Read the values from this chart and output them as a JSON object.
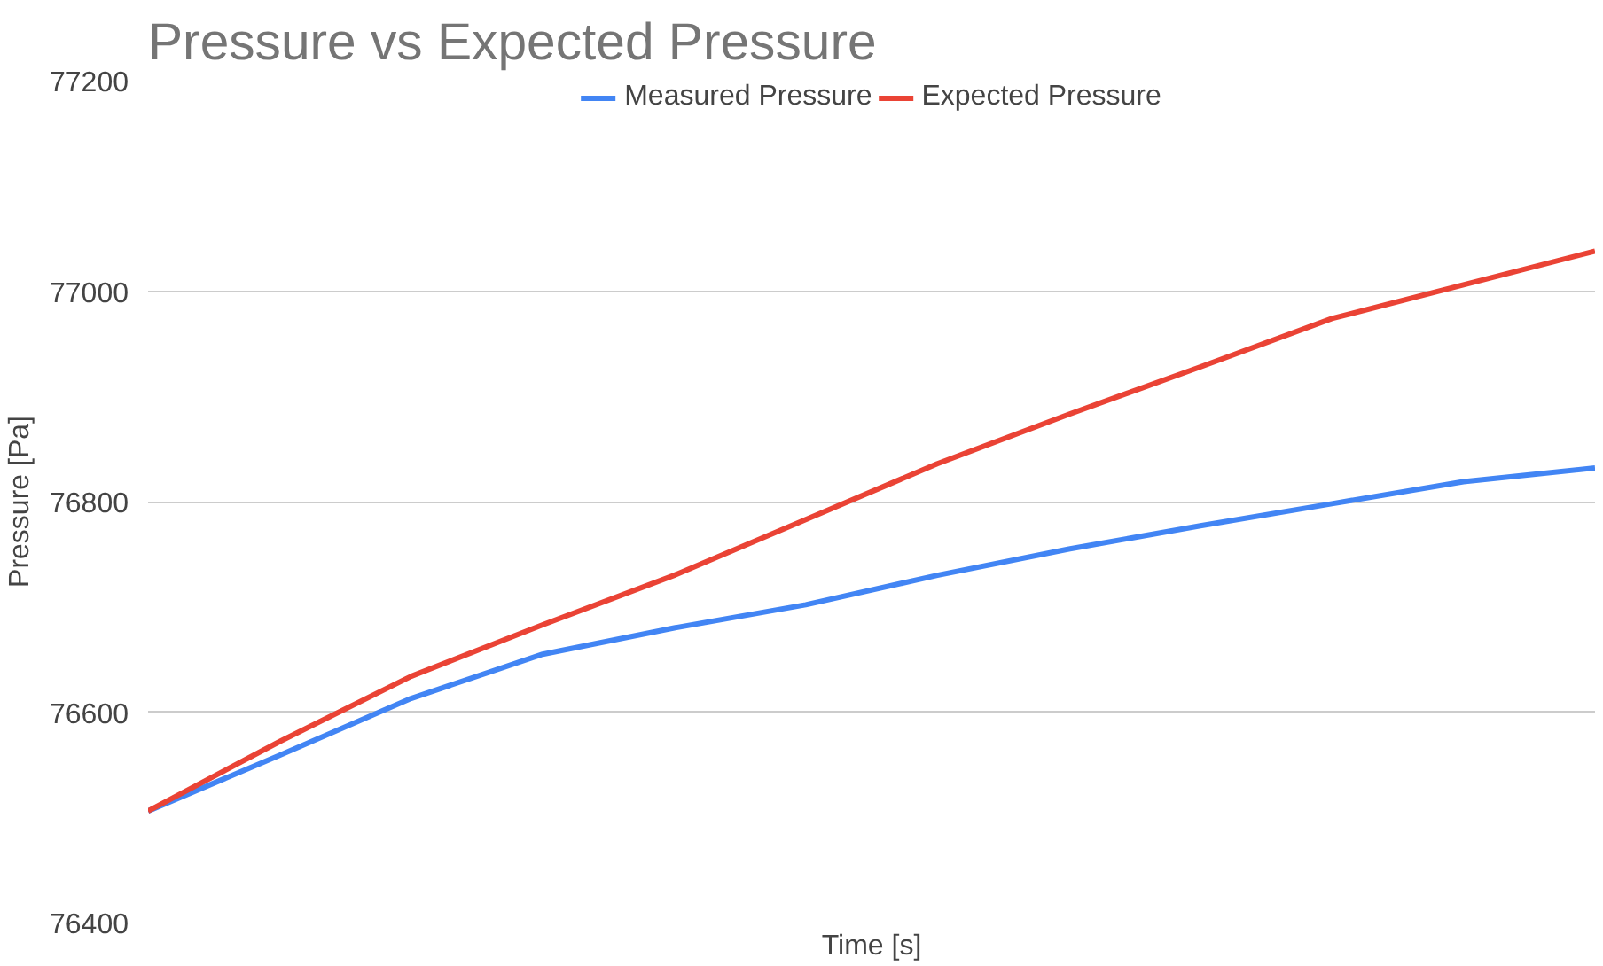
{
  "chart_data": {
    "type": "line",
    "title": "Pressure vs Expected Pressure",
    "xlabel": "Time [s]",
    "ylabel": "Pressure [Pa]",
    "categories": [
      null,
      null,
      null,
      null,
      null,
      null,
      null,
      null,
      null,
      null,
      null,
      null
    ],
    "series": [
      {
        "name": "Measured Pressure",
        "color": "#4285f4",
        "values": [
          76506,
          76559,
          76613,
          76655,
          76680,
          76702,
          76730,
          76755,
          76777,
          76798,
          76819,
          76832
        ]
      },
      {
        "name": "Expected Pressure",
        "color": "#ea4335",
        "values": [
          76506,
          76572,
          76634,
          76683,
          76730,
          76783,
          76836,
          76883,
          76928,
          76974,
          77006,
          77038
        ]
      }
    ],
    "ylim": [
      76400,
      77200
    ],
    "yticks": [
      76400,
      76600,
      76800,
      77000,
      77200
    ],
    "grid": "y",
    "legend": "top",
    "line_style": "solid",
    "marker": "none"
  }
}
